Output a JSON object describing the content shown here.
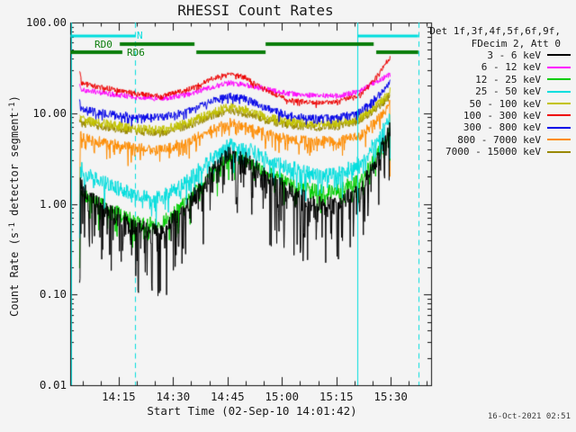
{
  "window": {
    "background": "#f4f4f4",
    "timestamp": "16-Oct-2021 02:51"
  },
  "chart_data": {
    "type": "line",
    "title": "RHESSI Count Rates",
    "xlabel": "Start Time (02-Sep-10 14:01:42)",
    "ylabel_parts": {
      "pre": "Count Rate (s",
      "sup1": "-1",
      "mid": " detector segment",
      "sup2": "-1",
      "post": ")"
    },
    "x_axis": {
      "start_time": "14:01:42",
      "ticks": [
        {
          "label": "14:15",
          "t": 13.3
        },
        {
          "label": "14:30",
          "t": 28.3
        },
        {
          "label": "14:45",
          "t": 43.3
        },
        {
          "label": "15:00",
          "t": 58.3
        },
        {
          "label": "15:15",
          "t": 73.3
        },
        {
          "label": "15:30",
          "t": 88.3
        }
      ],
      "minor_ticks_t": [
        3.3,
        8.3,
        18.3,
        23.3,
        33.3,
        38.3,
        48.3,
        53.3,
        63.3,
        68.3,
        78.3,
        83.3,
        93.3,
        98.3
      ],
      "t_range_min": [
        0,
        99.5
      ]
    },
    "y_axis": {
      "scale": "log",
      "range": [
        0.01,
        100
      ],
      "ticks": [
        {
          "label": "100.00",
          "value": 100
        },
        {
          "label": "10.00",
          "value": 10
        },
        {
          "label": "1.00",
          "value": 1
        },
        {
          "label": "0.10",
          "value": 0.1
        },
        {
          "label": "0.01",
          "value": 0.01
        }
      ]
    },
    "legend": {
      "header": [
        "Det 1f,3f,4f,5f,6f,9f,",
        "FDecim 2, Att 0"
      ],
      "entries": [
        {
          "label": "3 - 6 keV",
          "color": "#000000"
        },
        {
          "label": "6 - 12 keV",
          "color": "#ff00ff"
        },
        {
          "label": "12 - 25 keV",
          "color": "#00cc00"
        },
        {
          "label": "25 - 50 keV",
          "color": "#00dede"
        },
        {
          "label": "50 - 100 keV",
          "color": "#c3c300"
        },
        {
          "label": "100 - 300 keV",
          "color": "#ee0000"
        },
        {
          "label": "300 - 800 keV",
          "color": "#0000e8"
        },
        {
          "label": "800 - 7000 keV",
          "color": "#ff8c00"
        },
        {
          "label": "7000 - 15000 keV",
          "color": "#998800"
        }
      ]
    },
    "flags": {
      "night_bar": {
        "label": "N",
        "color": "#00dede",
        "y": 40,
        "h": 3,
        "segments": [
          [
            0,
            17.8
          ],
          [
            79.3,
            95.9
          ]
        ]
      },
      "rd0_bar": {
        "label": "RD0",
        "color": "#0a7d0a",
        "y": 49,
        "h": 4,
        "segments": [
          [
            13.6,
            34.2
          ],
          [
            53.8,
            83.6
          ]
        ]
      },
      "rd6_bar": {
        "label": "RD6",
        "color": "#0a7d0a",
        "y": 58,
        "h": 4,
        "segments": [
          [
            0,
            14.3
          ],
          [
            34.7,
            53.8
          ],
          [
            84.3,
            95.9
          ]
        ]
      },
      "vlines": [
        {
          "t": 0.1,
          "style": "solid"
        },
        {
          "t": 17.8,
          "style": "dashed"
        },
        {
          "t": 79.1,
          "style": "solid"
        },
        {
          "t": 95.9,
          "style": "dashed"
        }
      ]
    },
    "series": [
      {
        "name": "7000-15000 keV",
        "color": "#998800",
        "keys": [
          [
            2.5,
            9
          ],
          [
            3,
            7.8
          ],
          [
            10,
            7
          ],
          [
            18,
            6.3
          ],
          [
            25,
            6
          ],
          [
            32,
            7.2
          ],
          [
            40,
            9.7
          ],
          [
            44,
            10.8
          ],
          [
            48,
            10
          ],
          [
            54,
            8.3
          ],
          [
            60,
            7.4
          ],
          [
            68,
            7
          ],
          [
            74,
            7.2
          ],
          [
            80,
            8.3
          ],
          [
            84,
            11
          ],
          [
            87,
            14
          ],
          [
            88.2,
            16
          ]
        ],
        "noise": {
          "s": 0.045,
          "a": 0,
          "p": 1
        }
      },
      {
        "name": "50-100 keV",
        "color": "#c3c300",
        "keys": [
          [
            2.5,
            10
          ],
          [
            3,
            8.5
          ],
          [
            10,
            7.6
          ],
          [
            18,
            6.8
          ],
          [
            25,
            6.5
          ],
          [
            32,
            7.8
          ],
          [
            40,
            10.5
          ],
          [
            44,
            11.8
          ],
          [
            48,
            11
          ],
          [
            54,
            9
          ],
          [
            60,
            8
          ],
          [
            68,
            7.6
          ],
          [
            74,
            7.8
          ],
          [
            80,
            9
          ],
          [
            84,
            12
          ],
          [
            87,
            15
          ],
          [
            88.2,
            18
          ]
        ],
        "noise": {
          "s": 0.05,
          "a": 0,
          "p": 1
        }
      },
      {
        "name": "800-7000 keV",
        "color": "#ff8c00",
        "keys": [
          [
            2.5,
            0.6
          ],
          [
            2.7,
            6.8
          ],
          [
            3.2,
            5.4
          ],
          [
            10,
            4.7
          ],
          [
            18,
            4.2
          ],
          [
            25,
            4
          ],
          [
            32,
            4.8
          ],
          [
            40,
            6.8
          ],
          [
            44,
            7.8
          ],
          [
            48,
            7.2
          ],
          [
            54,
            6
          ],
          [
            60,
            5.2
          ],
          [
            68,
            4.9
          ],
          [
            74,
            5
          ],
          [
            80,
            5.8
          ],
          [
            84,
            8
          ],
          [
            87,
            10.5
          ],
          [
            88.05,
            13
          ],
          [
            88.2,
            0.39
          ]
        ],
        "noise": {
          "s": 0.055,
          "a": 0.18,
          "p": 9
        }
      },
      {
        "name": "300-800 keV",
        "color": "#0000e8",
        "keys": [
          [
            2.5,
            13
          ],
          [
            3,
            11
          ],
          [
            10,
            10
          ],
          [
            18,
            9.2
          ],
          [
            25,
            9
          ],
          [
            32,
            10.5
          ],
          [
            40,
            14
          ],
          [
            44,
            15.5
          ],
          [
            48,
            14.5
          ],
          [
            54,
            11.5
          ],
          [
            60,
            9.5
          ],
          [
            68,
            8.8
          ],
          [
            74,
            9
          ],
          [
            80,
            10.5
          ],
          [
            84,
            14.5
          ],
          [
            87,
            19
          ],
          [
            88.2,
            22
          ]
        ],
        "noise": {
          "s": 0.04,
          "a": 0.08,
          "p": 10
        }
      },
      {
        "name": "6-12 keV",
        "color": "#ff00ff",
        "keys": [
          [
            2.5,
            22
          ],
          [
            3,
            18
          ],
          [
            10,
            16.5
          ],
          [
            18,
            15
          ],
          [
            25,
            14.5
          ],
          [
            32,
            16
          ],
          [
            40,
            20
          ],
          [
            44,
            21.5
          ],
          [
            48,
            20.5
          ],
          [
            54,
            18.5
          ],
          [
            60,
            16.5
          ],
          [
            68,
            15.5
          ],
          [
            74,
            15.5
          ],
          [
            80,
            17.5
          ],
          [
            84,
            22
          ],
          [
            87,
            25
          ],
          [
            88.2,
            27
          ]
        ],
        "noise": {
          "s": 0.03,
          "a": 0,
          "p": 1
        }
      },
      {
        "name": "100-300 keV",
        "color": "#ee0000",
        "keys": [
          [
            2.5,
            30
          ],
          [
            3,
            22
          ],
          [
            6,
            20
          ],
          [
            10,
            19
          ],
          [
            18,
            16.5
          ],
          [
            25,
            15.5
          ],
          [
            32,
            18
          ],
          [
            40,
            25
          ],
          [
            44,
            27
          ],
          [
            48,
            25
          ],
          [
            54,
            18
          ],
          [
            60,
            14
          ],
          [
            68,
            13
          ],
          [
            74,
            13.5
          ],
          [
            80,
            16
          ],
          [
            84,
            24
          ],
          [
            87,
            36
          ],
          [
            88.2,
            41
          ]
        ],
        "noise": {
          "s": 0.027,
          "a": 0.05,
          "p": 10
        }
      },
      {
        "name": "12-25 keV",
        "color": "#00cc00",
        "keys": [
          [
            2.5,
            0.17
          ],
          [
            2.7,
            1.5
          ],
          [
            4,
            1.25
          ],
          [
            10,
            0.95
          ],
          [
            18,
            0.65
          ],
          [
            25,
            0.6
          ],
          [
            32,
            1.1
          ],
          [
            40,
            2.6
          ],
          [
            44,
            3.4
          ],
          [
            48,
            3.1
          ],
          [
            54,
            2.3
          ],
          [
            60,
            1.75
          ],
          [
            68,
            1.4
          ],
          [
            74,
            1.45
          ],
          [
            80,
            1.9
          ],
          [
            84,
            3.2
          ],
          [
            87,
            5.2
          ],
          [
            88.1,
            6.8
          ],
          [
            88.2,
            0.15
          ]
        ],
        "noise": {
          "s": 0.07,
          "a": 0.28,
          "p": 8
        }
      },
      {
        "name": "25-50 keV",
        "color": "#00dede",
        "keys": [
          [
            2.5,
            0.37
          ],
          [
            2.7,
            2.6
          ],
          [
            4,
            2.2
          ],
          [
            10,
            1.7
          ],
          [
            18,
            1.25
          ],
          [
            25,
            1.2
          ],
          [
            32,
            1.8
          ],
          [
            40,
            3.6
          ],
          [
            44,
            4.5
          ],
          [
            48,
            4.2
          ],
          [
            54,
            3.3
          ],
          [
            60,
            2.6
          ],
          [
            68,
            2.1
          ],
          [
            74,
            2.2
          ],
          [
            80,
            2.9
          ],
          [
            84,
            4.8
          ],
          [
            87,
            7.5
          ],
          [
            88.1,
            9.8
          ],
          [
            88.2,
            0.16
          ]
        ],
        "noise": {
          "s": 0.075,
          "a": 0.3,
          "p": 8
        }
      },
      {
        "name": "3-6 keV",
        "color": "#000000",
        "keys": [
          [
            2.5,
            0.155
          ],
          [
            2.7,
            1.7
          ],
          [
            4,
            1.35
          ],
          [
            10,
            0.9
          ],
          [
            18,
            0.55
          ],
          [
            25,
            0.5
          ],
          [
            32,
            0.95
          ],
          [
            40,
            2.6
          ],
          [
            44,
            3.6
          ],
          [
            48,
            3.2
          ],
          [
            54,
            2.1
          ],
          [
            60,
            1.4
          ],
          [
            68,
            1
          ],
          [
            74,
            1.05
          ],
          [
            80,
            1.5
          ],
          [
            84,
            2.8
          ],
          [
            87,
            5.5
          ],
          [
            88.2,
            7.5
          ]
        ],
        "noise": {
          "s": 0.09,
          "a": 0.75,
          "p": 7
        }
      }
    ]
  }
}
